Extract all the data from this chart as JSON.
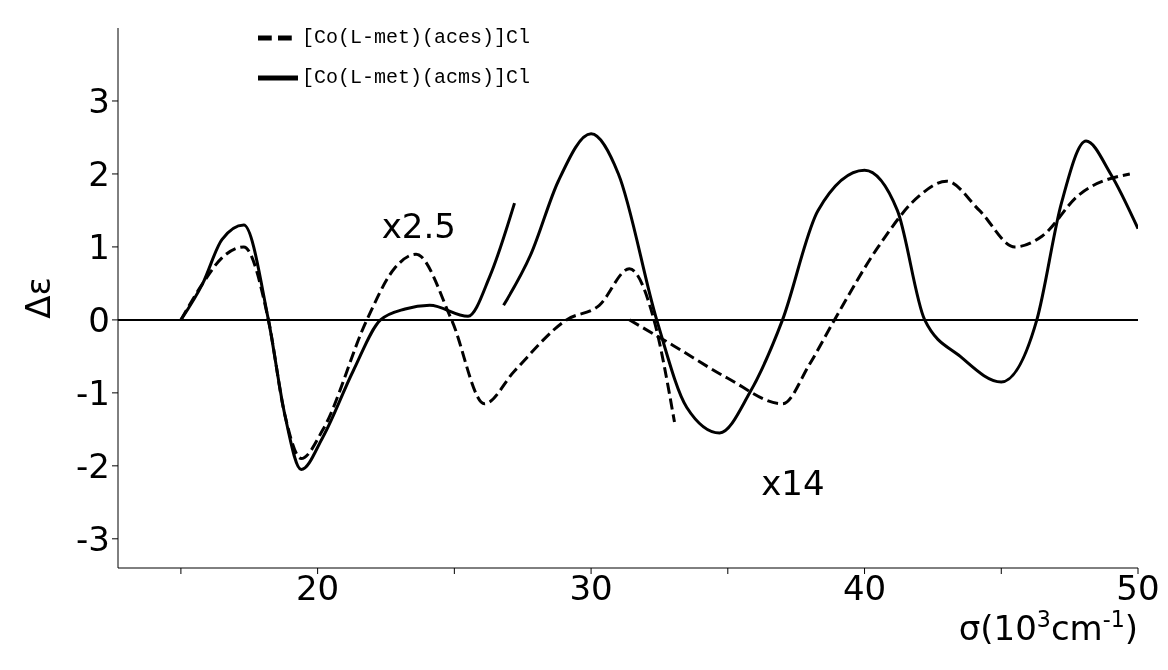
{
  "chart_data": {
    "type": "line",
    "xlabel": "σ(10$^{3}$cm$^{-1}$)",
    "ylabel": "Δε",
    "xlim": [
      12.7,
      50
    ],
    "ylim": [
      -3.4,
      4
    ],
    "xticks": [
      {
        "value": 15,
        "label": null
      },
      20,
      {
        "value": 25,
        "label": null
      },
      30,
      {
        "value": 35,
        "label": null
      },
      40,
      {
        "value": 45,
        "label": null
      },
      50
    ],
    "yticks": [
      -3,
      -2,
      -1,
      0,
      1,
      2,
      3
    ],
    "grid": false,
    "legend": "top left",
    "marker": "none",
    "ref_lines": [
      {
        "axis": "y",
        "value": 0,
        "label": null,
        "color": "#000000"
      }
    ],
    "annotations": [
      "x2.5",
      "x14"
    ],
    "series": [
      {
        "name": "[Co(L-met)(acms)]Cl",
        "color": "#000000",
        "line_style": "solid",
        "x": [
          15,
          15.8,
          16.5,
          17.3,
          18.2,
          18.8,
          19.4,
          20.2,
          21.3,
          22.3,
          23.2,
          24.1,
          25.5,
          26.3,
          27.2
        ],
        "values": [
          0,
          0.5,
          1.1,
          1.3,
          0,
          -1.3,
          -2.05,
          -1.6,
          -0.7,
          0,
          0.15,
          0.2,
          0.05,
          0.6,
          1.6
        ]
      },
      {
        "color": "#000000",
        "line_style": "solid",
        "x": [
          26.8,
          27.8,
          28.8,
          30,
          31,
          32.4,
          33.5,
          34.7,
          35.8,
          37,
          38.3,
          40,
          41.2,
          42.2,
          43.5,
          45,
          46.3,
          47.2,
          48.1,
          49,
          50
        ],
        "values": [
          0.2,
          0.9,
          1.9,
          2.55,
          2,
          0,
          -1.2,
          -1.55,
          -1,
          0,
          1.5,
          2.05,
          1.5,
          0,
          -0.5,
          -0.85,
          0,
          1.6,
          2.45,
          2,
          1.25
        ]
      },
      {
        "name": "[Co(L-met)(aces)]Cl",
        "color": "#000000",
        "line_style": "dashed",
        "x": [
          15,
          15.8,
          16.5,
          17.3,
          18.2,
          18.8,
          19.4,
          20.2,
          21.8,
          22.8,
          23.6,
          24.9,
          26.1,
          27.2,
          29.1,
          30.3,
          31.4,
          32.3,
          33.05
        ],
        "values": [
          0,
          0.5,
          0.85,
          1.0,
          0,
          -1.3,
          -1.9,
          -1.5,
          0,
          0.7,
          0.9,
          0,
          -1.15,
          -0.7,
          0,
          0.2,
          0.7,
          0,
          -1.4
        ]
      },
      {
        "color": "#000000",
        "line_style": "dashed",
        "x": [
          31.4,
          33,
          35,
          37,
          38,
          38.9,
          40.5,
          42,
          43,
          44.2,
          45.5,
          46.5,
          47.8,
          49.7
        ],
        "values": [
          0,
          -0.35,
          -0.8,
          -1.15,
          -0.6,
          0,
          1,
          1.7,
          1.9,
          1.5,
          1.0,
          1.15,
          1.7,
          2.0
        ]
      }
    ]
  }
}
